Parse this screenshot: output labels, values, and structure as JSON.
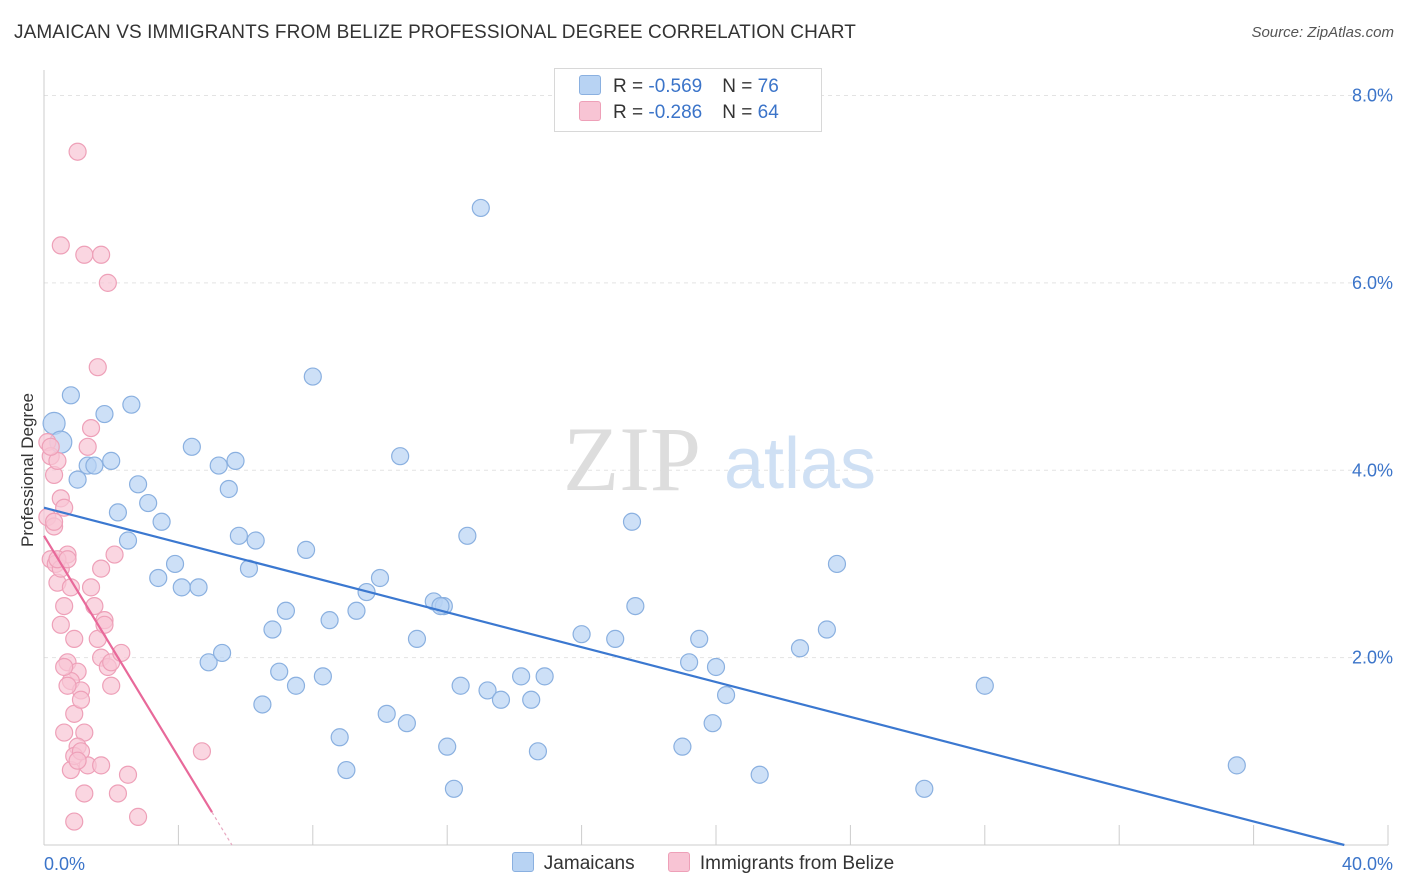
{
  "title": "JAMAICAN VS IMMIGRANTS FROM BELIZE PROFESSIONAL DEGREE CORRELATION CHART",
  "source": "Source: ZipAtlas.com",
  "watermark": {
    "zip": "ZIP",
    "atlas": "atlas"
  },
  "legend": {
    "rows": [
      {
        "r_label": "R = ",
        "r_value": "-0.569",
        "n_label": "N = ",
        "n_value": "76"
      },
      {
        "r_label": "R = ",
        "r_value": "-0.286",
        "n_label": "N = ",
        "n_value": "64"
      }
    ]
  },
  "colors": {
    "blue_fill": "#b8d3f3",
    "blue_stroke": "#8ab0e0",
    "blue_line": "#3b78d0",
    "pink_fill": "#f8c4d4",
    "pink_stroke": "#eea0b8",
    "pink_line": "#e8699a",
    "tick_text": "#3b74c9",
    "grid": "#e3e3e3"
  },
  "chart_data": {
    "type": "scatter",
    "title": "JAMAICAN VS IMMIGRANTS FROM BELIZE PROFESSIONAL DEGREE CORRELATION CHART",
    "xlabel": "",
    "ylabel": "Professional Degree",
    "xlim": [
      0,
      40
    ],
    "ylim": [
      0,
      8.2
    ],
    "x_tick_labels": [
      {
        "value": 0,
        "label": "0.0%"
      },
      {
        "value": 40,
        "label": "40.0%"
      }
    ],
    "y_tick_labels": [
      {
        "value": 2,
        "label": "2.0%"
      },
      {
        "value": 4,
        "label": "4.0%"
      },
      {
        "value": 6,
        "label": "6.0%"
      },
      {
        "value": 8,
        "label": "8.0%"
      }
    ],
    "grid": "horizontal dashed",
    "legend_position": "top-center",
    "series": [
      {
        "name": "Jamaicans",
        "color": "#b8d3f3",
        "trend": {
          "x": [
            0,
            38.7
          ],
          "y": [
            3.6,
            0
          ]
        },
        "points": [
          [
            0.3,
            4.5
          ],
          [
            0.5,
            4.3
          ],
          [
            0.8,
            4.8
          ],
          [
            1.0,
            3.9
          ],
          [
            1.3,
            4.05
          ],
          [
            1.5,
            4.05
          ],
          [
            2.0,
            4.1
          ],
          [
            1.8,
            4.6
          ],
          [
            2.2,
            3.55
          ],
          [
            2.5,
            3.25
          ],
          [
            2.6,
            4.7
          ],
          [
            2.8,
            3.85
          ],
          [
            3.1,
            3.65
          ],
          [
            3.5,
            3.45
          ],
          [
            3.4,
            2.85
          ],
          [
            3.9,
            3.0
          ],
          [
            4.1,
            2.75
          ],
          [
            4.4,
            4.25
          ],
          [
            4.6,
            2.75
          ],
          [
            4.9,
            1.95
          ],
          [
            5.3,
            2.05
          ],
          [
            5.2,
            4.05
          ],
          [
            5.7,
            4.1
          ],
          [
            5.5,
            3.8
          ],
          [
            5.8,
            3.3
          ],
          [
            6.1,
            2.95
          ],
          [
            6.3,
            3.25
          ],
          [
            6.5,
            1.5
          ],
          [
            6.8,
            2.3
          ],
          [
            7.0,
            1.85
          ],
          [
            7.2,
            2.5
          ],
          [
            7.5,
            1.7
          ],
          [
            7.8,
            3.15
          ],
          [
            8.0,
            5.0
          ],
          [
            8.3,
            1.8
          ],
          [
            8.5,
            2.4
          ],
          [
            8.8,
            1.15
          ],
          [
            9.0,
            0.8
          ],
          [
            9.3,
            2.5
          ],
          [
            9.6,
            2.7
          ],
          [
            10.0,
            2.85
          ],
          [
            10.2,
            1.4
          ],
          [
            10.6,
            4.15
          ],
          [
            10.8,
            1.3
          ],
          [
            11.1,
            2.2
          ],
          [
            11.6,
            2.6
          ],
          [
            11.9,
            2.55
          ],
          [
            12.0,
            1.05
          ],
          [
            12.4,
            1.7
          ],
          [
            12.6,
            3.3
          ],
          [
            12.2,
            0.6
          ],
          [
            13.2,
            1.65
          ],
          [
            13.6,
            1.55
          ],
          [
            13.0,
            6.8
          ],
          [
            14.2,
            1.8
          ],
          [
            14.5,
            1.55
          ],
          [
            14.7,
            1.0
          ],
          [
            14.9,
            1.8
          ],
          [
            16.0,
            2.25
          ],
          [
            17.0,
            2.2
          ],
          [
            17.6,
            2.55
          ],
          [
            17.5,
            3.45
          ],
          [
            19.0,
            1.05
          ],
          [
            19.2,
            1.95
          ],
          [
            19.5,
            2.2
          ],
          [
            19.9,
            1.3
          ],
          [
            20.0,
            1.9
          ],
          [
            20.3,
            1.6
          ],
          [
            21.3,
            0.75
          ],
          [
            22.5,
            2.1
          ],
          [
            23.3,
            2.3
          ],
          [
            23.6,
            3.0
          ],
          [
            26.2,
            0.6
          ],
          [
            28.0,
            1.7
          ],
          [
            35.5,
            0.85
          ],
          [
            11.8,
            2.55
          ]
        ]
      },
      {
        "name": "Immigrants from Belize",
        "color": "#f8c4d4",
        "trend": {
          "x": [
            0,
            5.0
          ],
          "y": [
            3.3,
            0.35
          ]
        },
        "points": [
          [
            0.1,
            4.3
          ],
          [
            0.2,
            4.15
          ],
          [
            0.1,
            3.5
          ],
          [
            0.3,
            3.95
          ],
          [
            0.4,
            4.1
          ],
          [
            0.2,
            3.05
          ],
          [
            0.3,
            3.4
          ],
          [
            0.4,
            2.8
          ],
          [
            0.5,
            3.7
          ],
          [
            0.6,
            3.6
          ],
          [
            0.35,
            3.0
          ],
          [
            0.7,
            3.1
          ],
          [
            0.5,
            2.35
          ],
          [
            0.8,
            2.75
          ],
          [
            0.6,
            2.55
          ],
          [
            0.9,
            2.2
          ],
          [
            0.7,
            1.95
          ],
          [
            1.0,
            1.85
          ],
          [
            0.8,
            1.75
          ],
          [
            1.1,
            1.65
          ],
          [
            0.9,
            1.4
          ],
          [
            1.2,
            1.2
          ],
          [
            1.0,
            1.05
          ],
          [
            0.8,
            0.8
          ],
          [
            0.9,
            0.25
          ],
          [
            1.2,
            0.55
          ],
          [
            1.3,
            0.85
          ],
          [
            1.4,
            2.75
          ],
          [
            1.5,
            2.55
          ],
          [
            1.6,
            2.2
          ],
          [
            1.7,
            2.0
          ],
          [
            1.8,
            2.4
          ],
          [
            1.9,
            1.9
          ],
          [
            2.0,
            1.95
          ],
          [
            1.7,
            2.95
          ],
          [
            1.3,
            4.25
          ],
          [
            1.4,
            4.45
          ],
          [
            1.6,
            5.1
          ],
          [
            1.0,
            7.4
          ],
          [
            0.5,
            6.4
          ],
          [
            1.2,
            6.3
          ],
          [
            1.7,
            6.3
          ],
          [
            1.9,
            6.0
          ],
          [
            2.0,
            1.7
          ],
          [
            2.3,
            2.05
          ],
          [
            2.5,
            0.75
          ],
          [
            2.2,
            0.55
          ],
          [
            2.8,
            0.3
          ],
          [
            4.7,
            1.0
          ],
          [
            0.2,
            4.25
          ],
          [
            0.3,
            3.45
          ],
          [
            0.5,
            2.95
          ],
          [
            0.6,
            1.9
          ],
          [
            0.7,
            1.7
          ],
          [
            1.1,
            1.55
          ],
          [
            0.6,
            1.2
          ],
          [
            0.9,
            0.95
          ],
          [
            1.1,
            1.0
          ],
          [
            1.7,
            0.85
          ],
          [
            0.4,
            3.05
          ],
          [
            2.1,
            3.1
          ],
          [
            0.7,
            3.05
          ],
          [
            1.8,
            2.35
          ],
          [
            1.0,
            0.9
          ]
        ]
      }
    ]
  }
}
